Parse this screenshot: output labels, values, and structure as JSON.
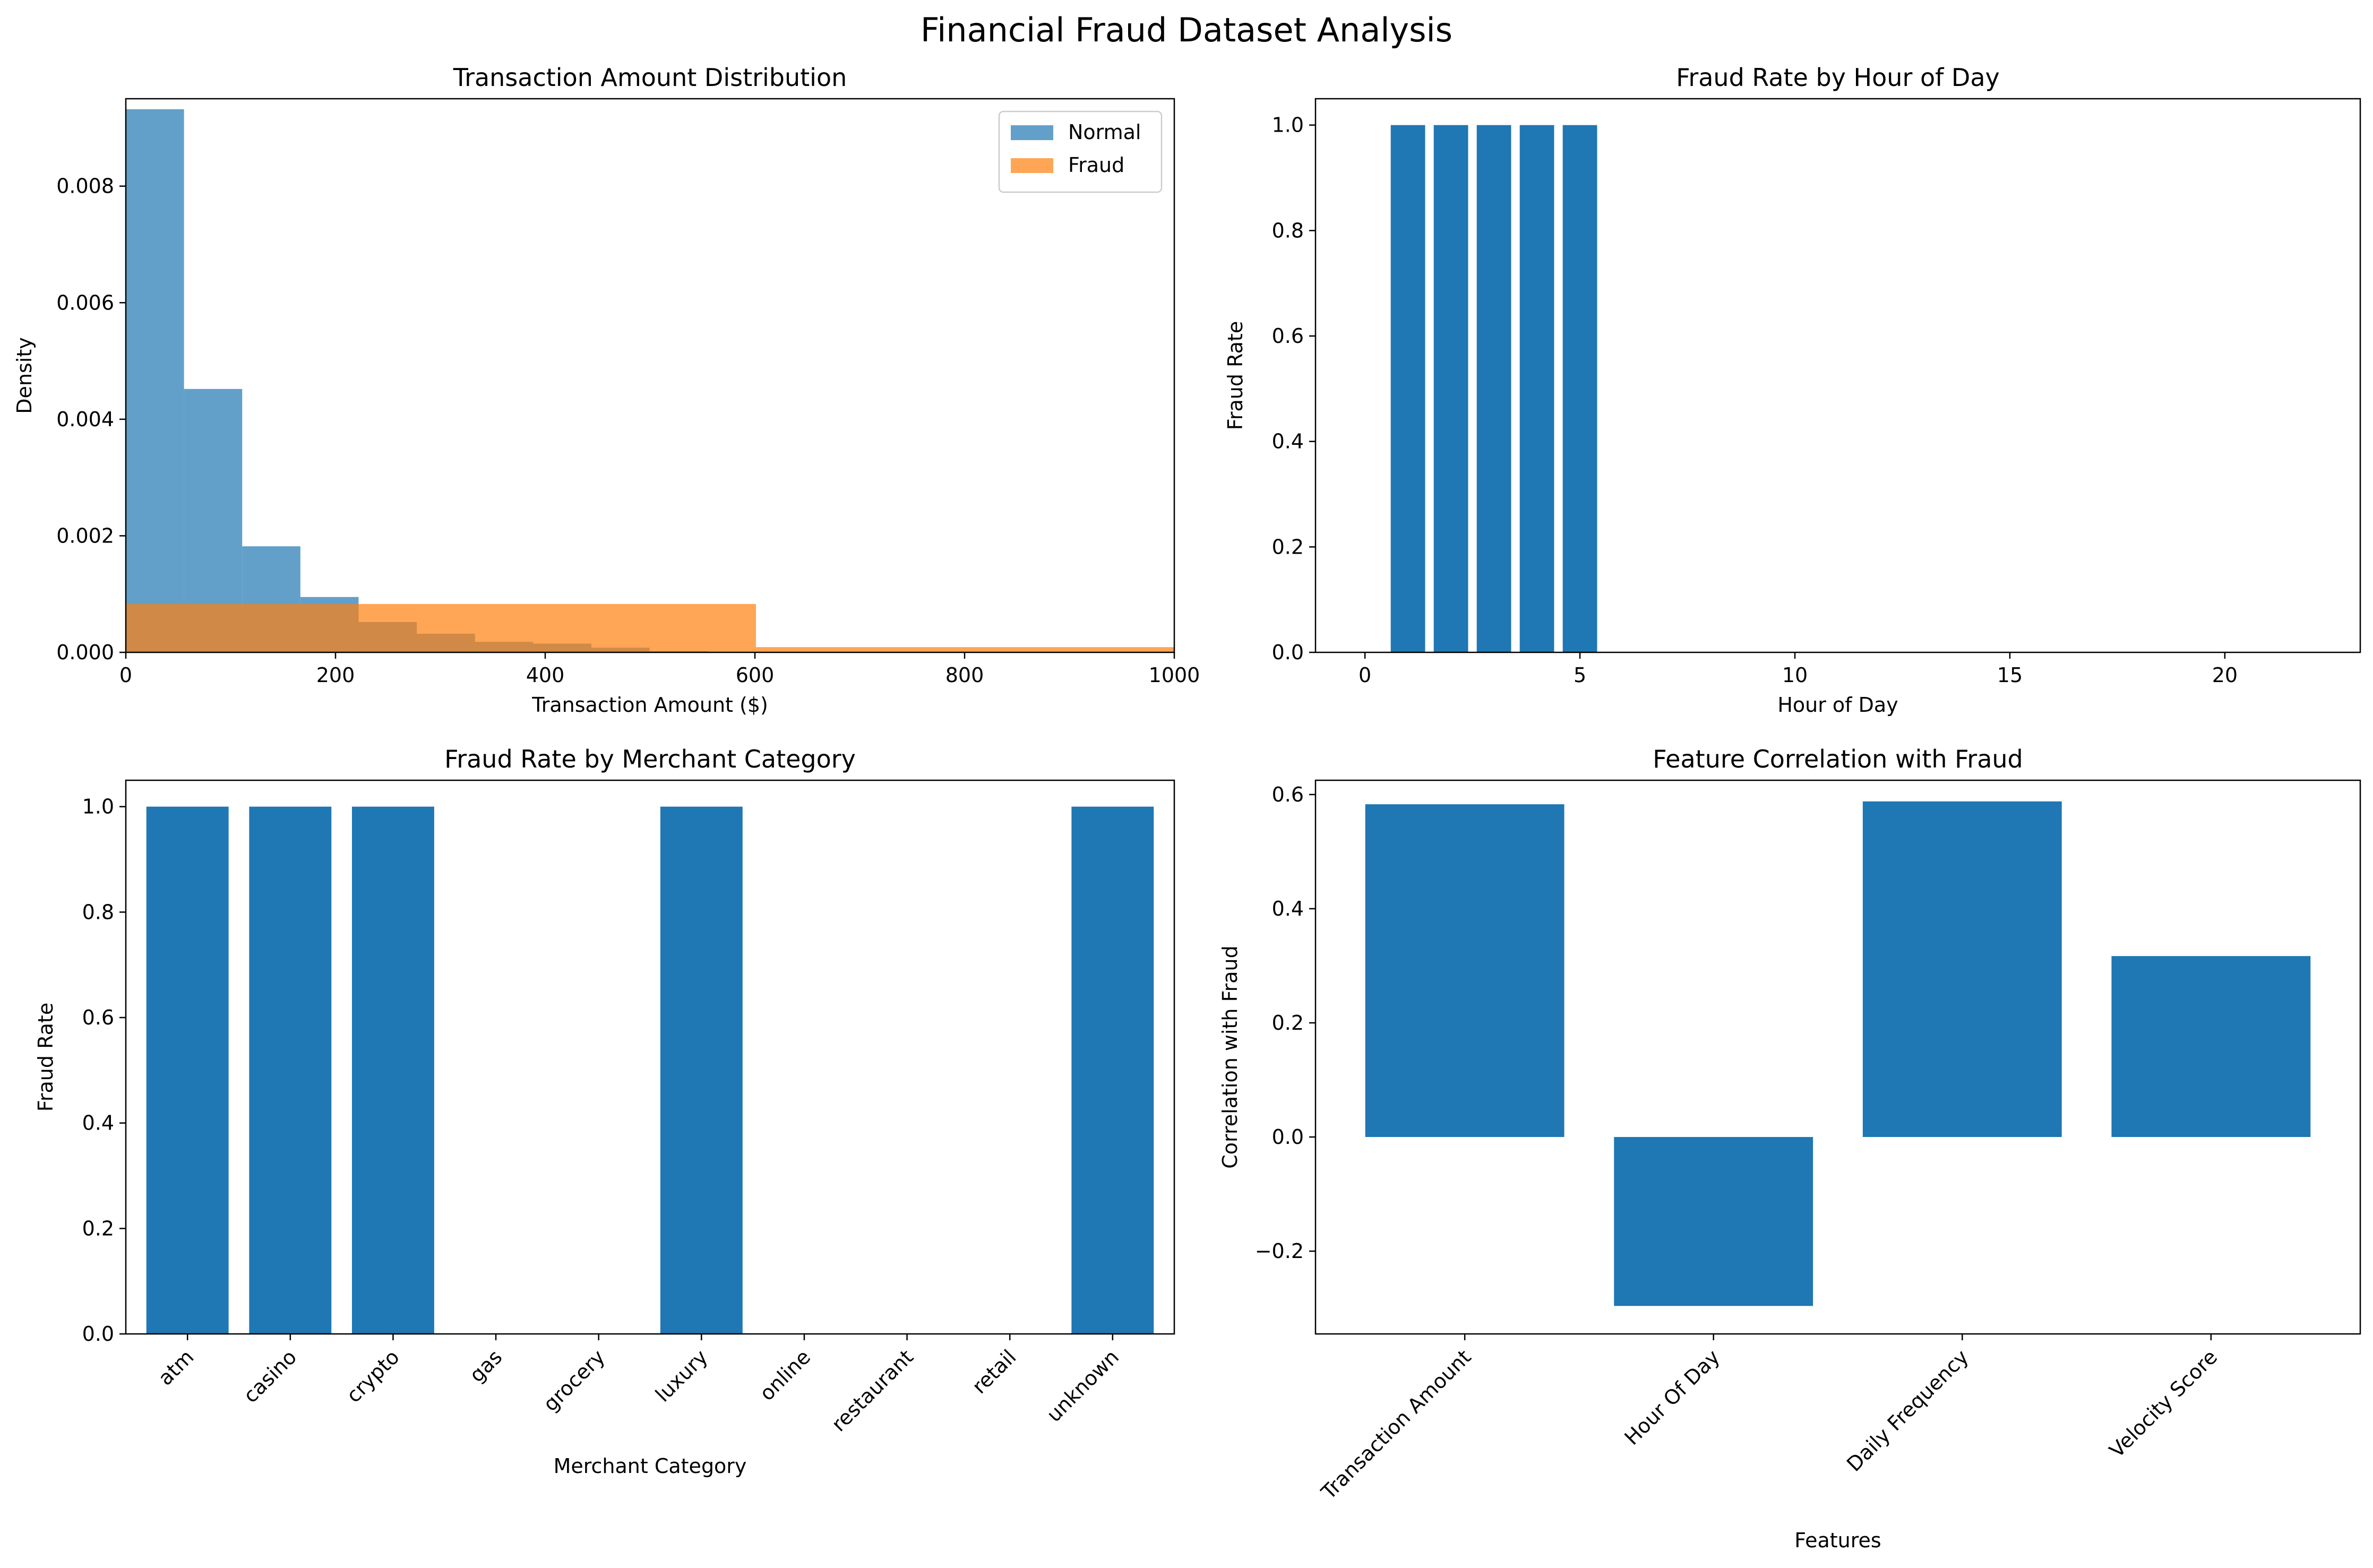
{
  "figure": {
    "title": "Financial Fraud Dataset Analysis",
    "colors": {
      "blue": "#1f77b4",
      "orange": "#ff7f0e"
    }
  },
  "chart_data": [
    {
      "type": "histogram",
      "title": "Transaction Amount Distribution",
      "xlabel": "Transaction Amount ($)",
      "ylabel": "Density",
      "xlim": [
        0,
        1000
      ],
      "ylim": [
        0,
        0.0095
      ],
      "xticks": [
        0,
        200,
        400,
        600,
        800,
        1000
      ],
      "xtick_labels": [
        "0",
        "200",
        "400",
        "600",
        "800",
        "1000"
      ],
      "yticks": [
        0,
        0.002,
        0.004,
        0.006,
        0.008
      ],
      "ytick_labels": [
        "0.000",
        "0.002",
        "0.004",
        "0.006",
        "0.008"
      ],
      "legend": {
        "position": "upper right",
        "entries": [
          "Normal",
          "Fraud"
        ]
      },
      "series": [
        {
          "name": "Normal",
          "color": "#1f77b4",
          "alpha": 0.7,
          "bins": [
            {
              "x0": 0,
              "x1": 55.5,
              "density": 0.00932
            },
            {
              "x0": 55.5,
              "x1": 111,
              "density": 0.00452
            },
            {
              "x0": 111,
              "x1": 166.5,
              "density": 0.00182
            },
            {
              "x0": 166.5,
              "x1": 222,
              "density": 0.00095
            },
            {
              "x0": 222,
              "x1": 277.5,
              "density": 0.00052
            },
            {
              "x0": 277.5,
              "x1": 333,
              "density": 0.00032
            },
            {
              "x0": 333,
              "x1": 388.5,
              "density": 0.00018
            },
            {
              "x0": 388.5,
              "x1": 444,
              "density": 0.00015
            },
            {
              "x0": 444,
              "x1": 499.5,
              "density": 8e-05
            },
            {
              "x0": 499.5,
              "x1": 555,
              "density": 2e-05
            }
          ]
        },
        {
          "name": "Fraud",
          "color": "#ff7f0e",
          "alpha": 0.7,
          "bins": [
            {
              "x0": 0,
              "x1": 601,
              "density": 0.00083
            },
            {
              "x0": 601,
              "x1": 1000,
              "density": 9e-05
            }
          ]
        }
      ]
    },
    {
      "type": "bar",
      "title": "Fraud Rate by Hour of Day",
      "xlabel": "Hour of Day",
      "ylabel": "Fraud Rate",
      "xlim": [
        -1.15,
        23.15
      ],
      "ylim": [
        0,
        1.05
      ],
      "xticks": [
        0,
        5,
        10,
        15,
        20
      ],
      "xtick_labels": [
        "0",
        "5",
        "10",
        "15",
        "20"
      ],
      "yticks": [
        0,
        0.2,
        0.4,
        0.6,
        0.8,
        1.0
      ],
      "ytick_labels": [
        "0.0",
        "0.2",
        "0.4",
        "0.6",
        "0.8",
        "1.0"
      ],
      "x": [
        1,
        2,
        3,
        4,
        5,
        6,
        7,
        8,
        9,
        10,
        11,
        12,
        13,
        14,
        15,
        16,
        17,
        18,
        19,
        20,
        21,
        22
      ],
      "values": [
        1,
        1,
        1,
        1,
        1,
        0,
        0,
        0,
        0,
        0,
        0,
        0,
        0,
        0,
        0,
        0,
        0,
        0,
        0,
        0,
        0,
        0
      ],
      "bar_width": 0.8,
      "color": "#1f77b4"
    },
    {
      "type": "bar",
      "title": "Fraud Rate by Merchant Category",
      "xlabel": "Merchant Category",
      "ylabel": "Fraud Rate",
      "ylim": [
        0,
        1.05
      ],
      "yticks": [
        0,
        0.2,
        0.4,
        0.6,
        0.8,
        1.0
      ],
      "ytick_labels": [
        "0.0",
        "0.2",
        "0.4",
        "0.6",
        "0.8",
        "1.0"
      ],
      "categories": [
        "atm",
        "casino",
        "crypto",
        "gas",
        "grocery",
        "luxury",
        "online",
        "restaurant",
        "retail",
        "unknown"
      ],
      "values": [
        1,
        1,
        1,
        0,
        0,
        1,
        0,
        0,
        0,
        1
      ],
      "bar_width": 0.8,
      "tick_rotation": 45,
      "color": "#1f77b4"
    },
    {
      "type": "bar",
      "title": "Feature Correlation with Fraud",
      "xlabel": "Features",
      "ylabel": "Correlation with Fraud",
      "ylim": [
        -0.345,
        0.625
      ],
      "yticks": [
        -0.2,
        0,
        0.2,
        0.4,
        0.6
      ],
      "ytick_labels": [
        "−0.2",
        "0.0",
        "0.2",
        "0.4",
        "0.6"
      ],
      "categories": [
        "Transaction Amount",
        "Hour Of Day",
        "Daily Frequency",
        "Velocity Score"
      ],
      "values": [
        0.583,
        -0.296,
        0.588,
        0.317
      ],
      "bar_width": 0.8,
      "tick_rotation": 45,
      "color": "#1f77b4"
    }
  ]
}
